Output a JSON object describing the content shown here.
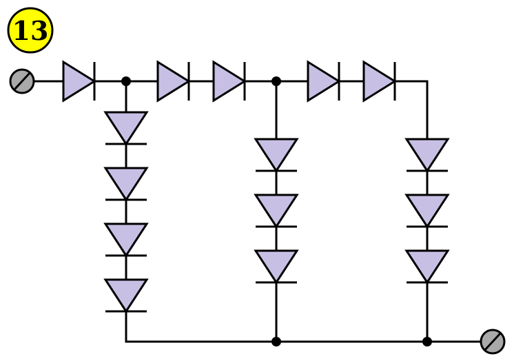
{
  "badge": {
    "label": "13",
    "fill_color": "#ffff00",
    "text_color": "#000000"
  },
  "colors": {
    "diode_fill": "#c8c0e4",
    "terminal_fill": "#a9a9a9",
    "wire": "#000000"
  },
  "circuit": {
    "terminals": [
      "input-terminal",
      "output-terminal"
    ],
    "series_diodes_top": 5,
    "branches": [
      {
        "name": "branch-1",
        "diodes": 4
      },
      {
        "name": "branch-2",
        "diodes": 3
      },
      {
        "name": "branch-3",
        "diodes": 3
      }
    ]
  }
}
